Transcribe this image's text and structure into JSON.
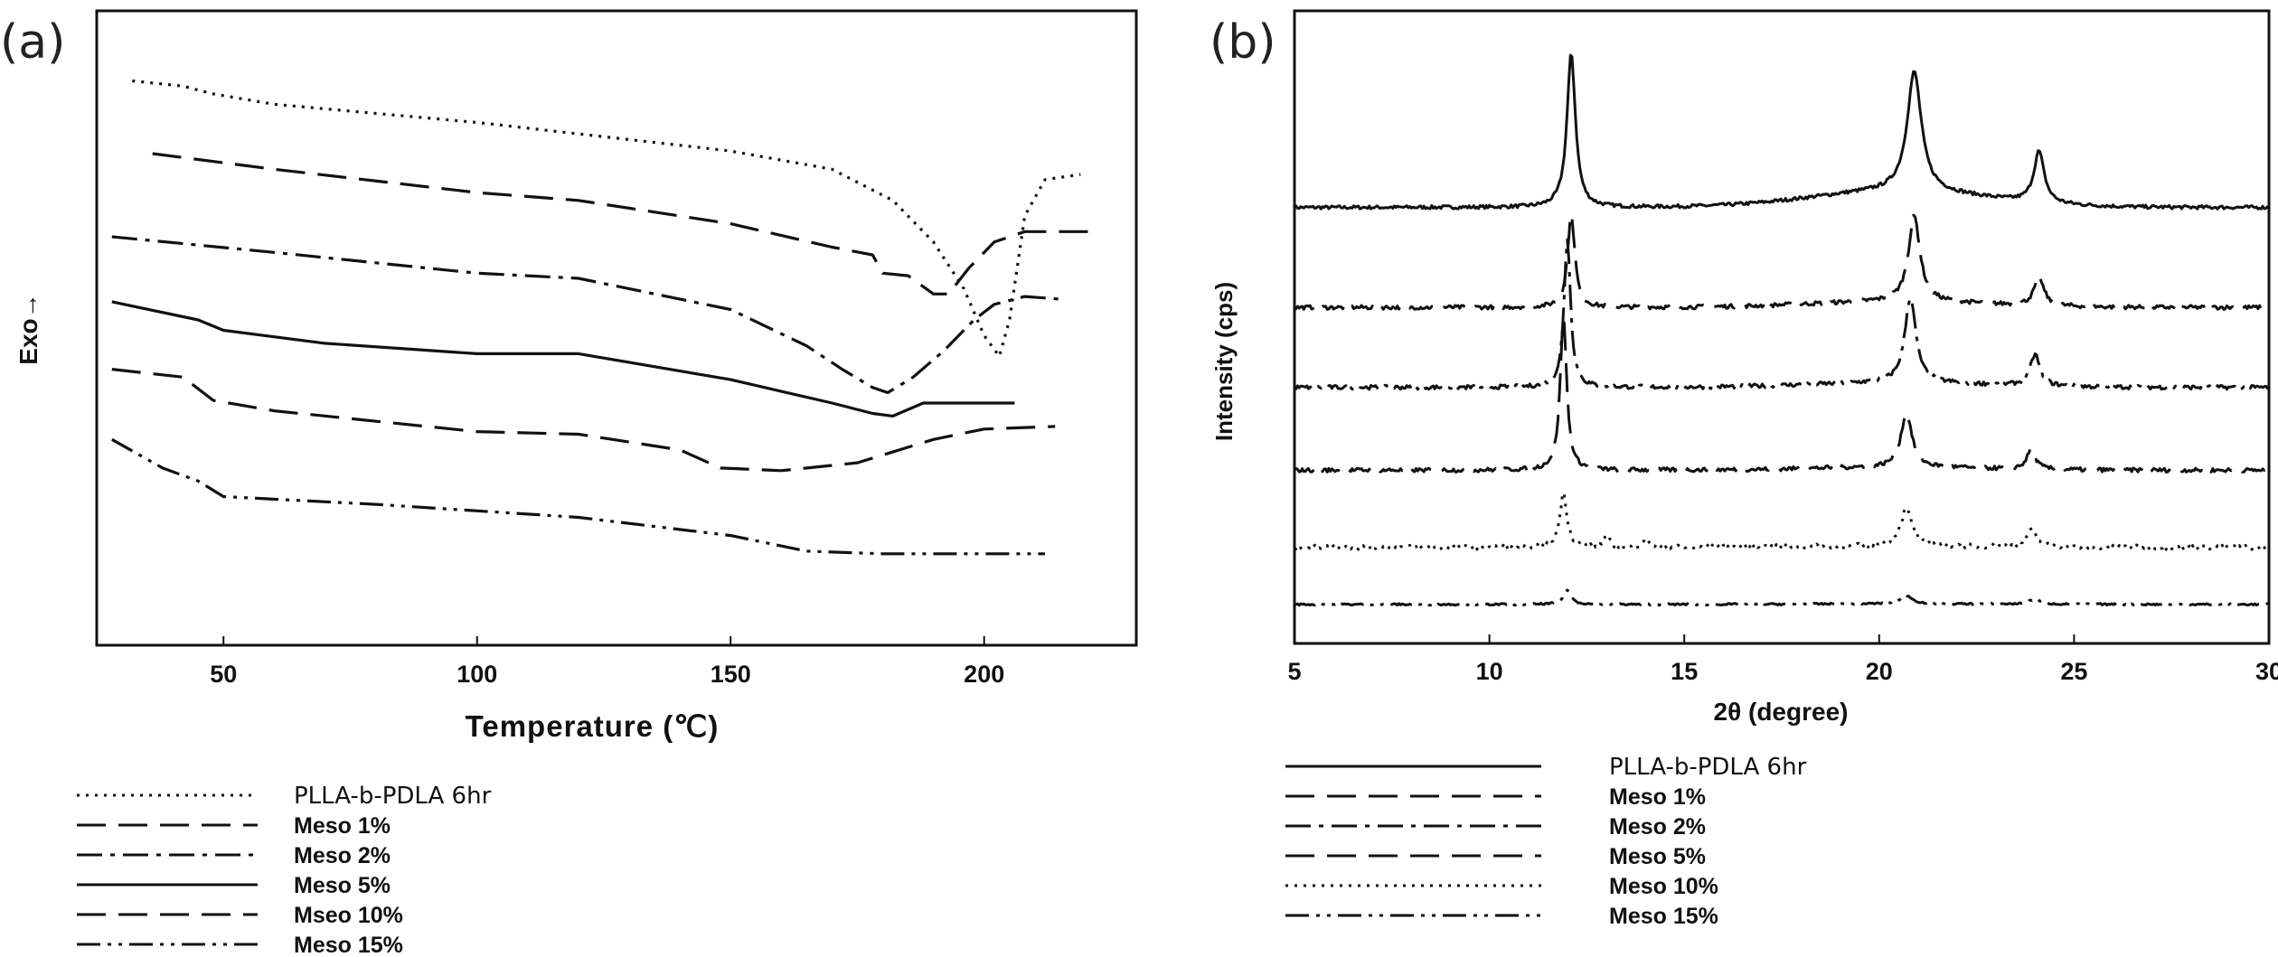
{
  "chart_data": [
    {
      "panel_label": "(a)",
      "type": "line",
      "xlabel": "Temperature (℃)",
      "ylabel": "Exo→",
      "xlim": [
        25,
        230
      ],
      "ylim": [
        0,
        100
      ],
      "xticks": [
        50,
        100,
        150,
        200
      ],
      "y_ticks_labeled": false,
      "grid": false,
      "legend_position": "bottom",
      "series": [
        {
          "name": "PLLA-b-PDLA 6hr",
          "style": "dotted",
          "points": [
            [
              32,
              94
            ],
            [
              42,
              93
            ],
            [
              48,
              91.5
            ],
            [
              60,
              89.5
            ],
            [
              100,
              86
            ],
            [
              150,
              80.5
            ],
            [
              170,
              77
            ],
            [
              182,
              71
            ],
            [
              190,
              63
            ],
            [
              196,
              54
            ],
            [
              200,
              45
            ],
            [
              203,
              41
            ],
            [
              205,
              48
            ],
            [
              208,
              68
            ],
            [
              212,
              75
            ],
            [
              219,
              76
            ]
          ]
        },
        {
          "name": "Meso 1%",
          "style": "dashed",
          "points": [
            [
              36,
              80
            ],
            [
              60,
              77
            ],
            [
              100,
              72.5
            ],
            [
              120,
              71
            ],
            [
              150,
              66.5
            ],
            [
              170,
              62
            ],
            [
              178,
              60.5
            ],
            [
              180,
              57
            ],
            [
              185,
              56.5
            ],
            [
              190,
              53
            ],
            [
              193,
              53
            ],
            [
              197,
              58
            ],
            [
              202,
              63
            ],
            [
              208,
              65
            ],
            [
              222,
              65
            ]
          ]
        },
        {
          "name": "Meso 2%",
          "style": "dashdot",
          "points": [
            [
              28,
              64
            ],
            [
              60,
              61
            ],
            [
              100,
              57
            ],
            [
              120,
              56
            ],
            [
              150,
              50
            ],
            [
              165,
              43
            ],
            [
              172,
              38.5
            ],
            [
              178,
              35
            ],
            [
              181,
              34
            ],
            [
              186,
              37
            ],
            [
              192,
              42
            ],
            [
              198,
              48
            ],
            [
              202,
              51
            ],
            [
              208,
              52.5
            ],
            [
              215,
              52
            ]
          ]
        },
        {
          "name": "Meso 5%",
          "style": "solid",
          "points": [
            [
              28,
              51.5
            ],
            [
              45,
              48
            ],
            [
              50,
              46
            ],
            [
              70,
              43.5
            ],
            [
              100,
              41.5
            ],
            [
              120,
              41.5
            ],
            [
              150,
              36.5
            ],
            [
              170,
              32
            ],
            [
              178,
              30
            ],
            [
              182,
              29.5
            ],
            [
              188,
              32
            ],
            [
              195,
              32
            ],
            [
              206,
              32
            ]
          ]
        },
        {
          "name": "Mseo 10%",
          "style": "dashed",
          "points": [
            [
              28,
              38.5
            ],
            [
              42,
              37
            ],
            [
              48,
              32.5
            ],
            [
              60,
              30.5
            ],
            [
              100,
              26.5
            ],
            [
              120,
              26
            ],
            [
              140,
              23
            ],
            [
              148,
              19.5
            ],
            [
              160,
              19
            ],
            [
              175,
              20.5
            ],
            [
              190,
              25
            ],
            [
              200,
              27
            ],
            [
              214,
              27.5
            ]
          ]
        },
        {
          "name": "Meso 15%",
          "style": "dashdotdot",
          "points": [
            [
              28,
              25
            ],
            [
              38,
              19.5
            ],
            [
              45,
              17
            ],
            [
              50,
              14
            ],
            [
              80,
              12.5
            ],
            [
              120,
              10
            ],
            [
              150,
              6.5
            ],
            [
              165,
              3.5
            ],
            [
              180,
              3
            ],
            [
              212,
              3
            ]
          ]
        }
      ]
    },
    {
      "panel_label": "(b)",
      "type": "line",
      "xlabel": "2θ (degree)",
      "ylabel": "Intensity (cps)",
      "xlim": [
        5,
        30
      ],
      "ylim": [
        0,
        100
      ],
      "xticks": [
        5,
        10,
        15,
        20,
        25,
        30
      ],
      "y_ticks_labeled": false,
      "grid": false,
      "legend_position": "bottom",
      "series": [
        {
          "name": "PLLA-b-PDLA 6hr",
          "style": "solid",
          "baseline": 70,
          "peaks": [
            [
              12.1,
              27,
              0.13
            ],
            [
              20.9,
              21,
              0.22
            ],
            [
              24.1,
              9,
              0.16
            ]
          ],
          "slope": 2.8,
          "noise": 0.3
        },
        {
          "name": "Meso 1%",
          "style": "dashed",
          "baseline": 52.5,
          "peaks": [
            [
              12.1,
              16.5,
              0.11
            ],
            [
              20.9,
              15,
              0.18
            ],
            [
              24.1,
              5,
              0.15
            ]
          ],
          "slope": 1.0,
          "noise": 0.35
        },
        {
          "name": "Meso 2%",
          "style": "dashdot",
          "baseline": 38.5,
          "peaks": [
            [
              12.0,
              26,
              0.1
            ],
            [
              20.8,
              15,
              0.17
            ],
            [
              24.0,
              5.5,
              0.15
            ]
          ],
          "slope": 0.8,
          "noise": 0.35
        },
        {
          "name": "Meso 5%",
          "style": "dashed",
          "baseline": 24,
          "peaks": [
            [
              11.9,
              27,
              0.1
            ],
            [
              20.7,
              9.5,
              0.17
            ],
            [
              23.9,
              3.5,
              0.13
            ]
          ],
          "slope": 0.5,
          "noise": 0.35
        },
        {
          "name": "Meso 10%",
          "style": "dotted",
          "baseline": 10.5,
          "peaks": [
            [
              11.9,
              9.5,
              0.11
            ],
            [
              13.0,
              2,
              0.09
            ],
            [
              14.0,
              1.5,
              0.09
            ],
            [
              20.7,
              6.5,
              0.18
            ],
            [
              23.9,
              3,
              0.15
            ]
          ],
          "slope": 0.2,
          "noise": 0.4
        },
        {
          "name": "Meso 15%",
          "style": "dashdotdot",
          "baseline": 0.5,
          "peaks": [
            [
              12.0,
              2.5,
              0.12
            ],
            [
              20.7,
              1.5,
              0.18
            ],
            [
              24.0,
              1,
              0.15
            ]
          ],
          "slope": 0.1,
          "noise": 0.15
        }
      ]
    }
  ]
}
